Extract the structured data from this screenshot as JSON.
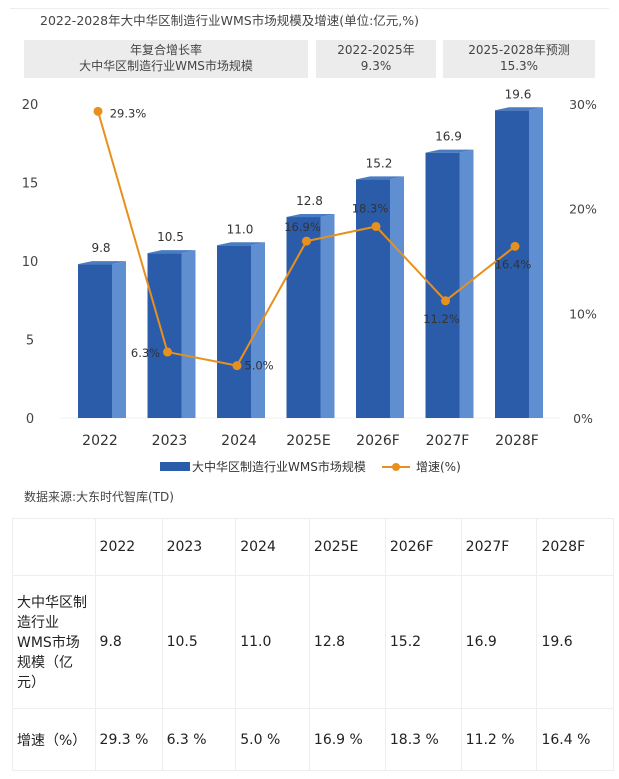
{
  "chart_data": {
    "type": "bar+line",
    "title": "2022-2028年大中华区制造行业WMS市场规模及增速(单位:亿元,%)",
    "categories": [
      "2022",
      "2023",
      "2024",
      "2025E",
      "2026F",
      "2027F",
      "2028F"
    ],
    "series": [
      {
        "name": "大中华区制造行业WMS市场规模",
        "type": "bar",
        "axis": "left",
        "values": [
          9.8,
          10.5,
          11.0,
          12.8,
          15.2,
          16.9,
          19.6
        ],
        "labels": [
          "9.8",
          "10.5",
          "11.0",
          "12.8",
          "15.2",
          "16.9",
          "19.6"
        ],
        "color": "#2b5caa"
      },
      {
        "name": "增速(%)",
        "type": "line",
        "axis": "right",
        "values": [
          29.3,
          6.3,
          5.0,
          16.9,
          18.3,
          11.2,
          16.4
        ],
        "labels": [
          "29.3%",
          "6.3%",
          "5.0%",
          "16.9%",
          "18.3%",
          "11.2%",
          "16.4%"
        ],
        "color": "#e8901e"
      }
    ],
    "yleft": {
      "range": [
        0,
        20
      ],
      "ticks": [
        "0",
        "5",
        "10",
        "15",
        "20"
      ]
    },
    "yright": {
      "range": [
        0,
        30
      ],
      "ticks": [
        "0%",
        "10%",
        "20%",
        "30%"
      ]
    },
    "legend": "bottom",
    "grid": false
  },
  "cagr": {
    "header": [
      "年复合增长率",
      "大中华区制造行业WMS市场规模"
    ],
    "p1": [
      "2022-2025年",
      "9.3%"
    ],
    "p2": [
      "2025-2028年预测",
      "15.3%"
    ]
  },
  "source": "数据来源:大东时代智库(TD)",
  "table": {
    "header": [
      "",
      "2022",
      "2023",
      "2024",
      "2025E",
      "2026F",
      "2027F",
      "2028F"
    ],
    "rows": [
      [
        "大中华区制造行业WMS市场规模（亿元）",
        "9.8",
        "10.5",
        "11.0",
        "12.8",
        "15.2",
        "16.9",
        "19.6"
      ],
      [
        "增速（%）",
        "29.3 %",
        "6.3 %",
        "5.0 %",
        "16.9 %",
        "18.3 %",
        "11.2 %",
        "16.4 %"
      ]
    ]
  }
}
